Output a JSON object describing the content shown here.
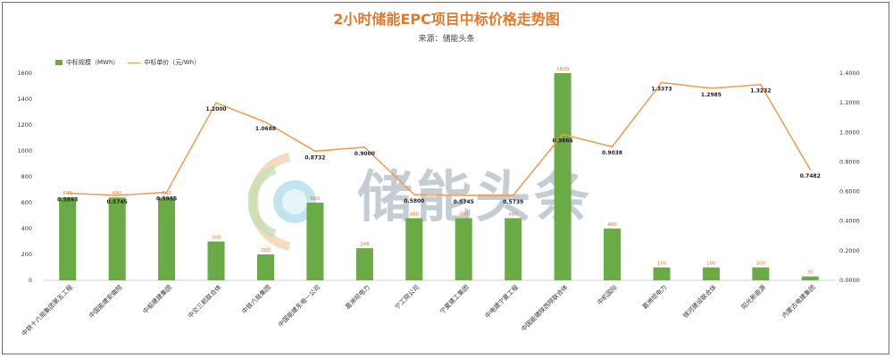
{
  "title": "2小时储能EPC项目中标价格走势图",
  "subtitle": "来源：储能头条",
  "watermark": "储能头条",
  "colors": {
    "bar": "#6aab45",
    "line": "#f09a4f",
    "title": "#e07a2c"
  },
  "chart_data": {
    "type": "bar",
    "categories": [
      "中铁十六局集团第五工程",
      "中国能建安徽院",
      "中船建建集团",
      "中交三航联合体",
      "中铁六局集团",
      "中国能建东电一公司",
      "葛洲坝电力",
      "宁工院公司",
      "宁夏建工集团",
      "中电建宁夏工程",
      "中国能建陕西院联合体",
      "中机国际",
      "葛洲坝电力",
      "锦河建设联合体",
      "阳光新能源",
      "内蒙古电建集团"
    ],
    "series": [
      {
        "name": "中标规模（MWh）",
        "type": "bar",
        "axis": "left",
        "values": [
          640,
          640,
          640,
          300,
          200,
          600,
          248,
          480,
          480,
          480,
          1600,
          400,
          100,
          100,
          100,
          30
        ],
        "labels": [
          "640",
          "640",
          "640",
          "300",
          "200",
          "600",
          "248",
          "480",
          "480",
          "480",
          "1600",
          "400",
          "100",
          "100",
          "100",
          "30"
        ]
      },
      {
        "name": "中标单价（元/Wh）",
        "type": "line",
        "axis": "right",
        "values": [
          0.5893,
          0.5745,
          0.5955,
          1.2,
          1.0688,
          0.8732,
          0.9,
          0.58,
          0.5745,
          0.5739,
          0.9866,
          0.9038,
          1.3373,
          1.2985,
          1.3232,
          0.7482
        ],
        "labels": [
          "0.5893",
          "0.5745",
          "0.5955",
          "1.2000",
          "1.0688",
          "0.8732",
          "0.9000",
          "0.5800",
          "0.5745",
          "0.5739",
          "0.9866",
          "0.9038",
          "1.3373",
          "1.2985",
          "1.3232",
          "0.7482"
        ]
      }
    ],
    "y_left": {
      "ylim": [
        0,
        1600
      ],
      "ticks": [
        "0",
        "200",
        "400",
        "600",
        "800",
        "1000",
        "1200",
        "1400",
        "1600"
      ]
    },
    "y_right": {
      "ylim": [
        0,
        1.4
      ],
      "ticks": [
        "0.0000",
        "0.2000",
        "0.4000",
        "0.6000",
        "0.8000",
        "1.0000",
        "1.2000",
        "1.4000"
      ]
    },
    "grid": false,
    "legend_position": "top-left"
  }
}
